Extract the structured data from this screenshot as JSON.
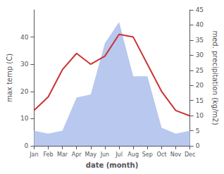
{
  "chart_data": {
    "type": "line",
    "xlabel": "date (month)",
    "ylabel": "max temp (C)",
    "y2label": "med. precipitation (kg/m2)",
    "categories": [
      "Jan",
      "Feb",
      "Mar",
      "Apr",
      "May",
      "Jun",
      "Jul",
      "Aug",
      "Sep",
      "Oct",
      "Nov",
      "Dec"
    ],
    "series": [
      {
        "type": "area",
        "color": "#b8c8ee",
        "axis": "y2",
        "values": [
          5,
          4,
          5,
          16,
          17,
          34,
          41,
          23,
          23,
          6,
          4,
          5
        ]
      },
      {
        "type": "line",
        "color": "#cc3333",
        "values": [
          13,
          18,
          28,
          34,
          30,
          33,
          41,
          40,
          30,
          20,
          13,
          11
        ]
      }
    ],
    "ylim": [
      0,
      50
    ],
    "yticks": [
      0,
      10,
      20,
      30,
      40
    ],
    "y2lim": [
      0,
      45
    ],
    "y2ticks": [
      0,
      5,
      10,
      15,
      20,
      25,
      30,
      35,
      40,
      45
    ],
    "grid": false
  }
}
